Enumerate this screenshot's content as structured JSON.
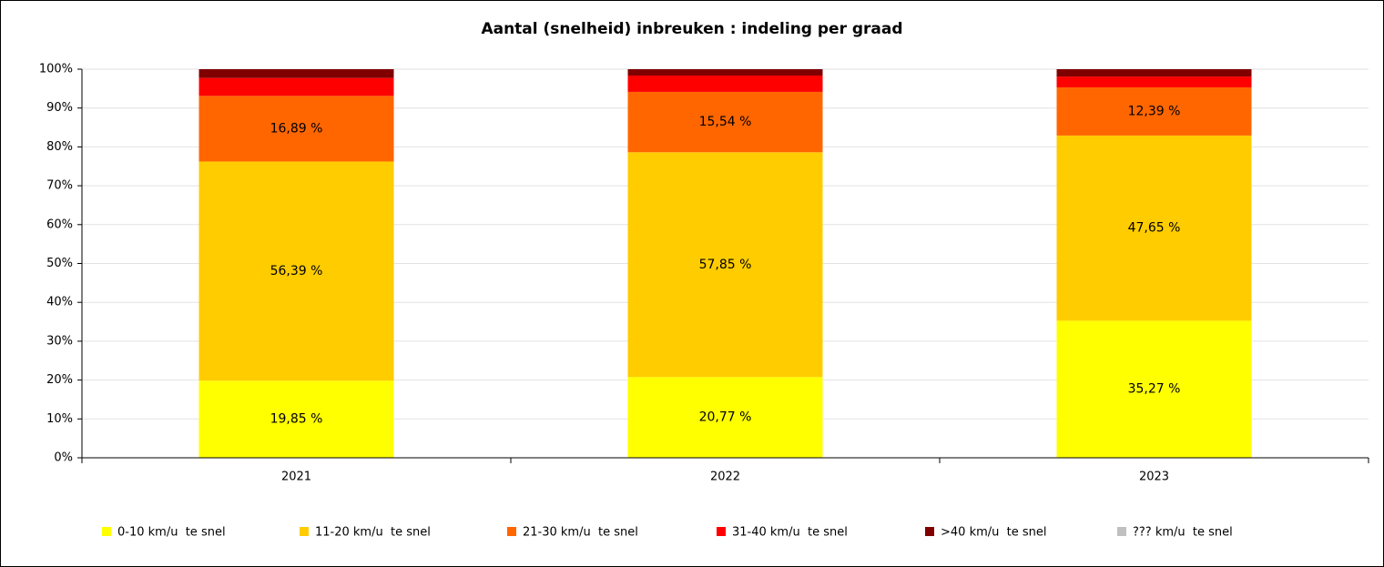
{
  "chart_data": {
    "type": "stacked_bar",
    "title": "Aantal (snelheid) inbreuken : indeling per graad",
    "categories": [
      "2021",
      "2022",
      "2023"
    ],
    "series": [
      {
        "name": "0-10 km/u  te snel",
        "color": "#ffff00",
        "values": [
          19.85,
          20.77,
          35.27
        ],
        "value_labels": [
          "19,85 %",
          "20,77 %",
          "35,27 %"
        ]
      },
      {
        "name": "11-20 km/u  te snel",
        "color": "#ffcc00",
        "values": [
          56.39,
          57.85,
          47.65
        ],
        "value_labels": [
          "56,39 %",
          "57,85 %",
          "47,65 %"
        ]
      },
      {
        "name": "21-30 km/u  te snel",
        "color": "#ff6600",
        "values": [
          16.89,
          15.54,
          12.39
        ],
        "value_labels": [
          "16,89 %",
          "15,54 %",
          "12,39 %"
        ]
      },
      {
        "name": "31-40 km/u  te snel",
        "color": "#ff0000",
        "values": [
          4.6,
          4.2,
          2.8
        ]
      },
      {
        "name": ">40 km/u  te snel",
        "color": "#800000",
        "values": [
          2.27,
          1.64,
          1.89
        ]
      },
      {
        "name": "??? km/u  te snel",
        "color": "#c0c0c0",
        "values": [
          0,
          0,
          0
        ]
      }
    ],
    "ylim": [
      0,
      100
    ],
    "yticks": [
      {
        "value": 0,
        "label": "0%"
      },
      {
        "value": 10,
        "label": "10%"
      },
      {
        "value": 20,
        "label": "20%"
      },
      {
        "value": 30,
        "label": "30%"
      },
      {
        "value": 40,
        "label": "40%"
      },
      {
        "value": 50,
        "label": "50%"
      },
      {
        "value": 60,
        "label": "60%"
      },
      {
        "value": 70,
        "label": "70%"
      },
      {
        "value": 80,
        "label": "80%"
      },
      {
        "value": 90,
        "label": "90%"
      },
      {
        "value": 100,
        "label": "100%"
      }
    ],
    "grid": true,
    "legend": "bottom"
  }
}
